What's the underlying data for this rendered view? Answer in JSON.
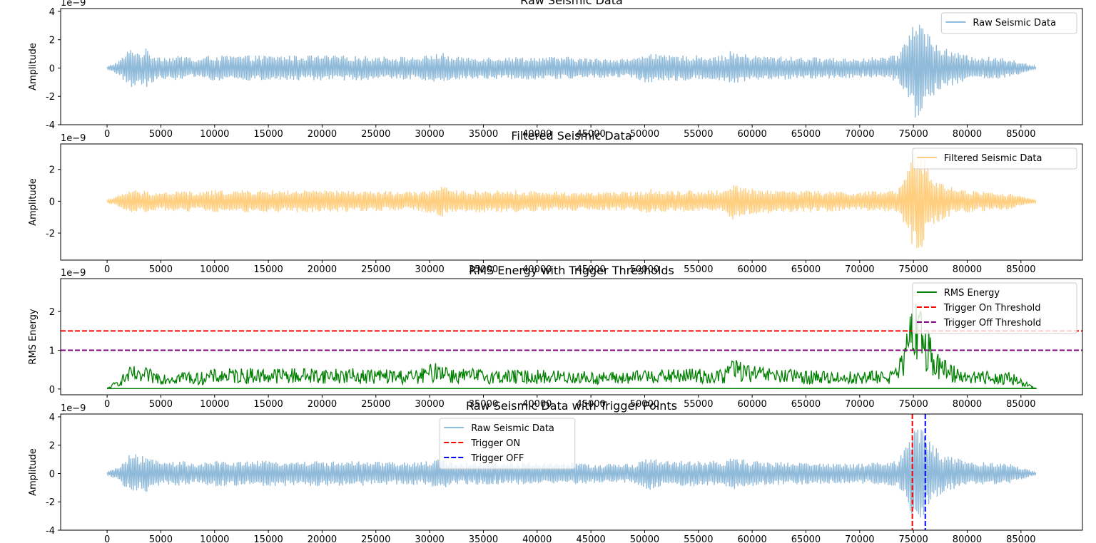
{
  "chart_data": [
    {
      "type": "line",
      "title": "Raw Seismic Data",
      "xlabel": "",
      "ylabel": "Amplitude",
      "offset_label": "1e−9",
      "xlim": [
        -4320,
        90720
      ],
      "ylim": [
        -4,
        4.2
      ],
      "xticks": [
        0,
        5000,
        10000,
        15000,
        20000,
        25000,
        30000,
        35000,
        40000,
        45000,
        50000,
        55000,
        60000,
        65000,
        70000,
        75000,
        80000,
        85000
      ],
      "yticks": [
        -4,
        -2,
        0,
        2,
        4
      ],
      "legend_position": "top-right",
      "series": [
        {
          "name": "Raw Seismic Data",
          "color": "#8fbad9",
          "style": "solid",
          "envelope_x": [
            0,
            1200,
            2000,
            2500,
            3000,
            3600,
            4200,
            5500,
            7500,
            8200,
            9500,
            12000,
            17000,
            20000,
            29000,
            31200,
            32000,
            37000,
            43000,
            45000,
            49000,
            50500,
            51500,
            54000,
            57500,
            57900,
            60000,
            64000,
            70000,
            73500,
            74500,
            75200,
            75800,
            76500,
            77500,
            80000,
            84000,
            86400
          ],
          "envelope_y": [
            0.1,
            0.6,
            1.3,
            1.5,
            1.1,
            1.4,
            1.0,
            0.8,
            0.9,
            0.6,
            0.9,
            0.9,
            0.9,
            0.9,
            0.8,
            1.1,
            0.8,
            0.8,
            0.8,
            0.7,
            0.7,
            1.2,
            0.9,
            0.9,
            0.9,
            1.2,
            0.9,
            0.8,
            0.7,
            0.9,
            2.5,
            3.8,
            3.2,
            2.4,
            1.5,
            0.9,
            0.7,
            0.1
          ]
        }
      ]
    },
    {
      "type": "line",
      "title": "Filtered Seismic Data",
      "xlabel": "",
      "ylabel": "Amplitude",
      "offset_label": "1e−9",
      "xlim": [
        -4320,
        90720
      ],
      "ylim": [
        -3.7,
        3.6
      ],
      "xticks": [
        0,
        5000,
        10000,
        15000,
        20000,
        25000,
        30000,
        35000,
        40000,
        45000,
        50000,
        55000,
        60000,
        65000,
        70000,
        75000,
        80000,
        85000
      ],
      "yticks": [
        -2,
        0,
        2
      ],
      "legend_position": "top-right",
      "series": [
        {
          "name": "Filtered Seismic Data",
          "color": "#ffcf7f",
          "style": "solid",
          "envelope_x": [
            0,
            1200,
            2000,
            2500,
            3000,
            3600,
            4200,
            5500,
            7500,
            8200,
            9500,
            12000,
            17000,
            20000,
            29000,
            31200,
            32000,
            37000,
            43000,
            45000,
            49000,
            50500,
            51500,
            54000,
            57500,
            57900,
            60000,
            64000,
            70000,
            73500,
            74500,
            75200,
            75800,
            76500,
            77500,
            80000,
            84000,
            86400
          ],
          "envelope_y": [
            0.1,
            0.4,
            0.7,
            0.8,
            0.6,
            0.7,
            0.6,
            0.6,
            0.7,
            0.5,
            0.7,
            0.7,
            0.7,
            0.7,
            0.6,
            1.0,
            0.7,
            0.7,
            0.6,
            0.6,
            0.6,
            0.8,
            0.7,
            0.7,
            0.7,
            1.2,
            0.8,
            0.7,
            0.6,
            0.7,
            2.0,
            3.5,
            2.9,
            2.0,
            1.2,
            0.7,
            0.5,
            0.1
          ]
        }
      ]
    },
    {
      "type": "line",
      "title": "RMS Energy with Trigger Thresholds",
      "xlabel": "",
      "ylabel": "RMS Energy",
      "offset_label": "1e−9",
      "xlim": [
        -4320,
        90720
      ],
      "ylim": [
        -0.15,
        2.85
      ],
      "xticks": [
        0,
        5000,
        10000,
        15000,
        20000,
        25000,
        30000,
        35000,
        40000,
        45000,
        50000,
        55000,
        60000,
        65000,
        70000,
        75000,
        80000,
        85000
      ],
      "yticks": [
        0,
        1,
        2
      ],
      "legend_position": "top-right",
      "series": [
        {
          "name": "RMS Energy",
          "color": "#008000",
          "style": "solid",
          "envelope_x": [
            0,
            1200,
            2000,
            2500,
            3000,
            3600,
            4200,
            5500,
            7500,
            8200,
            9500,
            12000,
            17000,
            20000,
            29000,
            31200,
            32000,
            37000,
            43000,
            45000,
            49000,
            50500,
            51500,
            54000,
            57500,
            57900,
            60000,
            64000,
            70000,
            73500,
            74500,
            75200,
            75800,
            76500,
            77500,
            80000,
            84000,
            86400
          ],
          "envelope_y": [
            0.02,
            0.3,
            0.55,
            0.6,
            0.45,
            0.55,
            0.5,
            0.45,
            0.5,
            0.4,
            0.5,
            0.55,
            0.55,
            0.55,
            0.5,
            0.8,
            0.55,
            0.5,
            0.5,
            0.45,
            0.45,
            0.6,
            0.5,
            0.55,
            0.5,
            0.9,
            0.6,
            0.5,
            0.45,
            0.55,
            1.6,
            2.7,
            2.2,
            1.5,
            0.8,
            0.5,
            0.45,
            0.02
          ]
        },
        {
          "name": "Trigger On Threshold",
          "color": "#ff0000",
          "style": "dashed",
          "hline": 1.5
        },
        {
          "name": "Trigger Off Threshold",
          "color": "#800080",
          "style": "dashed",
          "hline": 1.0
        }
      ]
    },
    {
      "type": "line",
      "title": "Raw Seismic Data with Trigger Points",
      "xlabel": "",
      "ylabel": "Amplitude",
      "offset_label": "1e−9",
      "xlim": [
        -4320,
        90720
      ],
      "ylim": [
        -4,
        4.2
      ],
      "xticks": [
        0,
        5000,
        10000,
        15000,
        20000,
        25000,
        30000,
        35000,
        40000,
        45000,
        50000,
        55000,
        60000,
        65000,
        70000,
        75000,
        80000,
        85000
      ],
      "yticks": [
        -4,
        -2,
        0,
        2,
        4
      ],
      "legend_position": "upper center",
      "series": [
        {
          "name": "Raw Seismic Data",
          "color": "#8fbad9",
          "style": "solid",
          "envelope_x": [
            0,
            1200,
            2000,
            2500,
            3000,
            3600,
            4200,
            5500,
            7500,
            8200,
            9500,
            12000,
            17000,
            20000,
            29000,
            31200,
            32000,
            37000,
            43000,
            45000,
            49000,
            50500,
            51500,
            54000,
            57500,
            57900,
            60000,
            64000,
            70000,
            73500,
            74500,
            75200,
            75800,
            76500,
            77500,
            80000,
            84000,
            86400
          ],
          "envelope_y": [
            0.1,
            0.6,
            1.3,
            1.5,
            1.1,
            1.4,
            1.0,
            0.8,
            0.9,
            0.6,
            0.9,
            0.9,
            0.9,
            0.9,
            0.8,
            1.1,
            0.8,
            0.8,
            0.8,
            0.7,
            0.7,
            1.2,
            0.9,
            0.9,
            0.9,
            1.2,
            0.9,
            0.8,
            0.7,
            0.9,
            2.5,
            3.8,
            3.2,
            2.4,
            1.5,
            0.9,
            0.7,
            0.1
          ]
        },
        {
          "name": "Trigger ON",
          "color": "#ff0000",
          "style": "dashed",
          "vline": 74900
        },
        {
          "name": "Trigger OFF",
          "color": "#0000ff",
          "style": "dashed",
          "vline": 76100
        }
      ]
    }
  ]
}
